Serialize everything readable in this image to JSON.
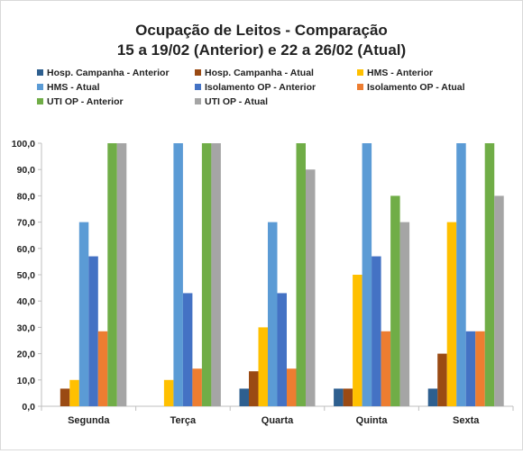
{
  "chart_data": {
    "type": "bar",
    "title_line1": "Ocupação de Leitos - Comparação",
    "title_line2": "15 a 19/02 (Anterior) e 22 a 26/02 (Atual)",
    "categories": [
      "Segunda",
      "Terça",
      "Quarta",
      "Quinta",
      "Sexta"
    ],
    "ylim": [
      0,
      100
    ],
    "yticks": [
      "0,0",
      "10,0",
      "20,0",
      "30,0",
      "40,0",
      "50,0",
      "60,0",
      "70,0",
      "80,0",
      "90,0",
      "100,0"
    ],
    "grid": false,
    "legend_position": "top",
    "series": [
      {
        "name": "Hosp. Campanha - Anterior",
        "color": "#2e5f8f",
        "values": [
          0,
          0,
          6.7,
          6.7,
          6.7
        ]
      },
      {
        "name": "Hosp. Campanha - Atual",
        "color": "#9a4a13",
        "values": [
          6.7,
          0,
          13.3,
          6.7,
          20
        ]
      },
      {
        "name": "HMS - Anterior",
        "color": "#ffc000",
        "values": [
          10,
          10,
          30,
          50,
          70
        ]
      },
      {
        "name": "HMS - Atual",
        "color": "#5b9bd5",
        "values": [
          70,
          100,
          70,
          100,
          100
        ]
      },
      {
        "name": "Isolamento OP - Anterior",
        "color": "#4472c4",
        "values": [
          57,
          43,
          43,
          57,
          28.5
        ]
      },
      {
        "name": "Isolamento OP - Atual",
        "color": "#ed7d31",
        "values": [
          28.5,
          14.3,
          14.3,
          28.5,
          28.5
        ]
      },
      {
        "name": "UTI OP - Anterior",
        "color": "#70ad47",
        "values": [
          100,
          100,
          100,
          80,
          100
        ]
      },
      {
        "name": "UTI OP - Atual",
        "color": "#a5a5a5",
        "values": [
          100,
          100,
          90,
          70,
          80
        ]
      }
    ]
  }
}
